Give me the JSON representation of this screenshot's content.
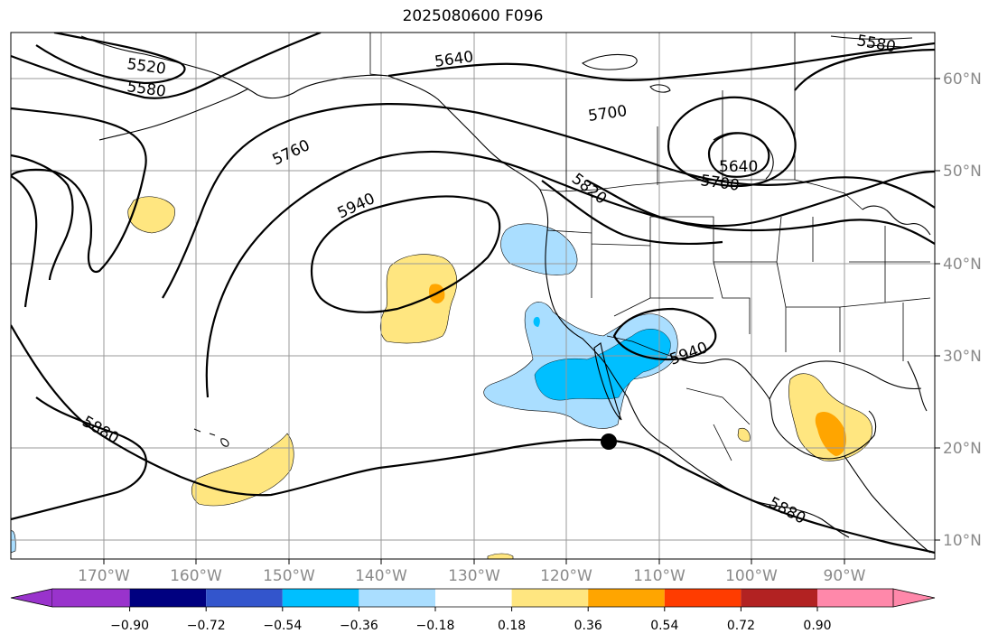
{
  "title": "2025080600 F096",
  "map": {
    "lon_labels": [
      "170°W",
      "160°W",
      "150°W",
      "140°W",
      "130°W",
      "120°W",
      "110°W",
      "100°W",
      "90°W"
    ],
    "lat_labels": [
      "60°N",
      "50°N",
      "40°N",
      "30°N",
      "20°N",
      "10°N"
    ],
    "contour_labels": [
      "5520",
      "5580",
      "5640",
      "5700",
      "5760",
      "5820",
      "5940",
      "5640",
      "5700",
      "5880",
      "5880",
      "5940",
      "5580"
    ],
    "marker": "storm-center-marker"
  },
  "colorbar": {
    "colors": [
      "#9933cc",
      "#000080",
      "#3355cc",
      "#00bfff",
      "#aadeff",
      "#ffffff",
      "#ffe680",
      "#ffa500",
      "#ff3c00",
      "#b22222",
      "#ff88aa"
    ],
    "tick_labels": [
      "−0.90",
      "−0.72",
      "−0.54",
      "−0.36",
      "−0.18",
      "0.18",
      "0.36",
      "0.54",
      "0.72",
      "0.90"
    ]
  }
}
